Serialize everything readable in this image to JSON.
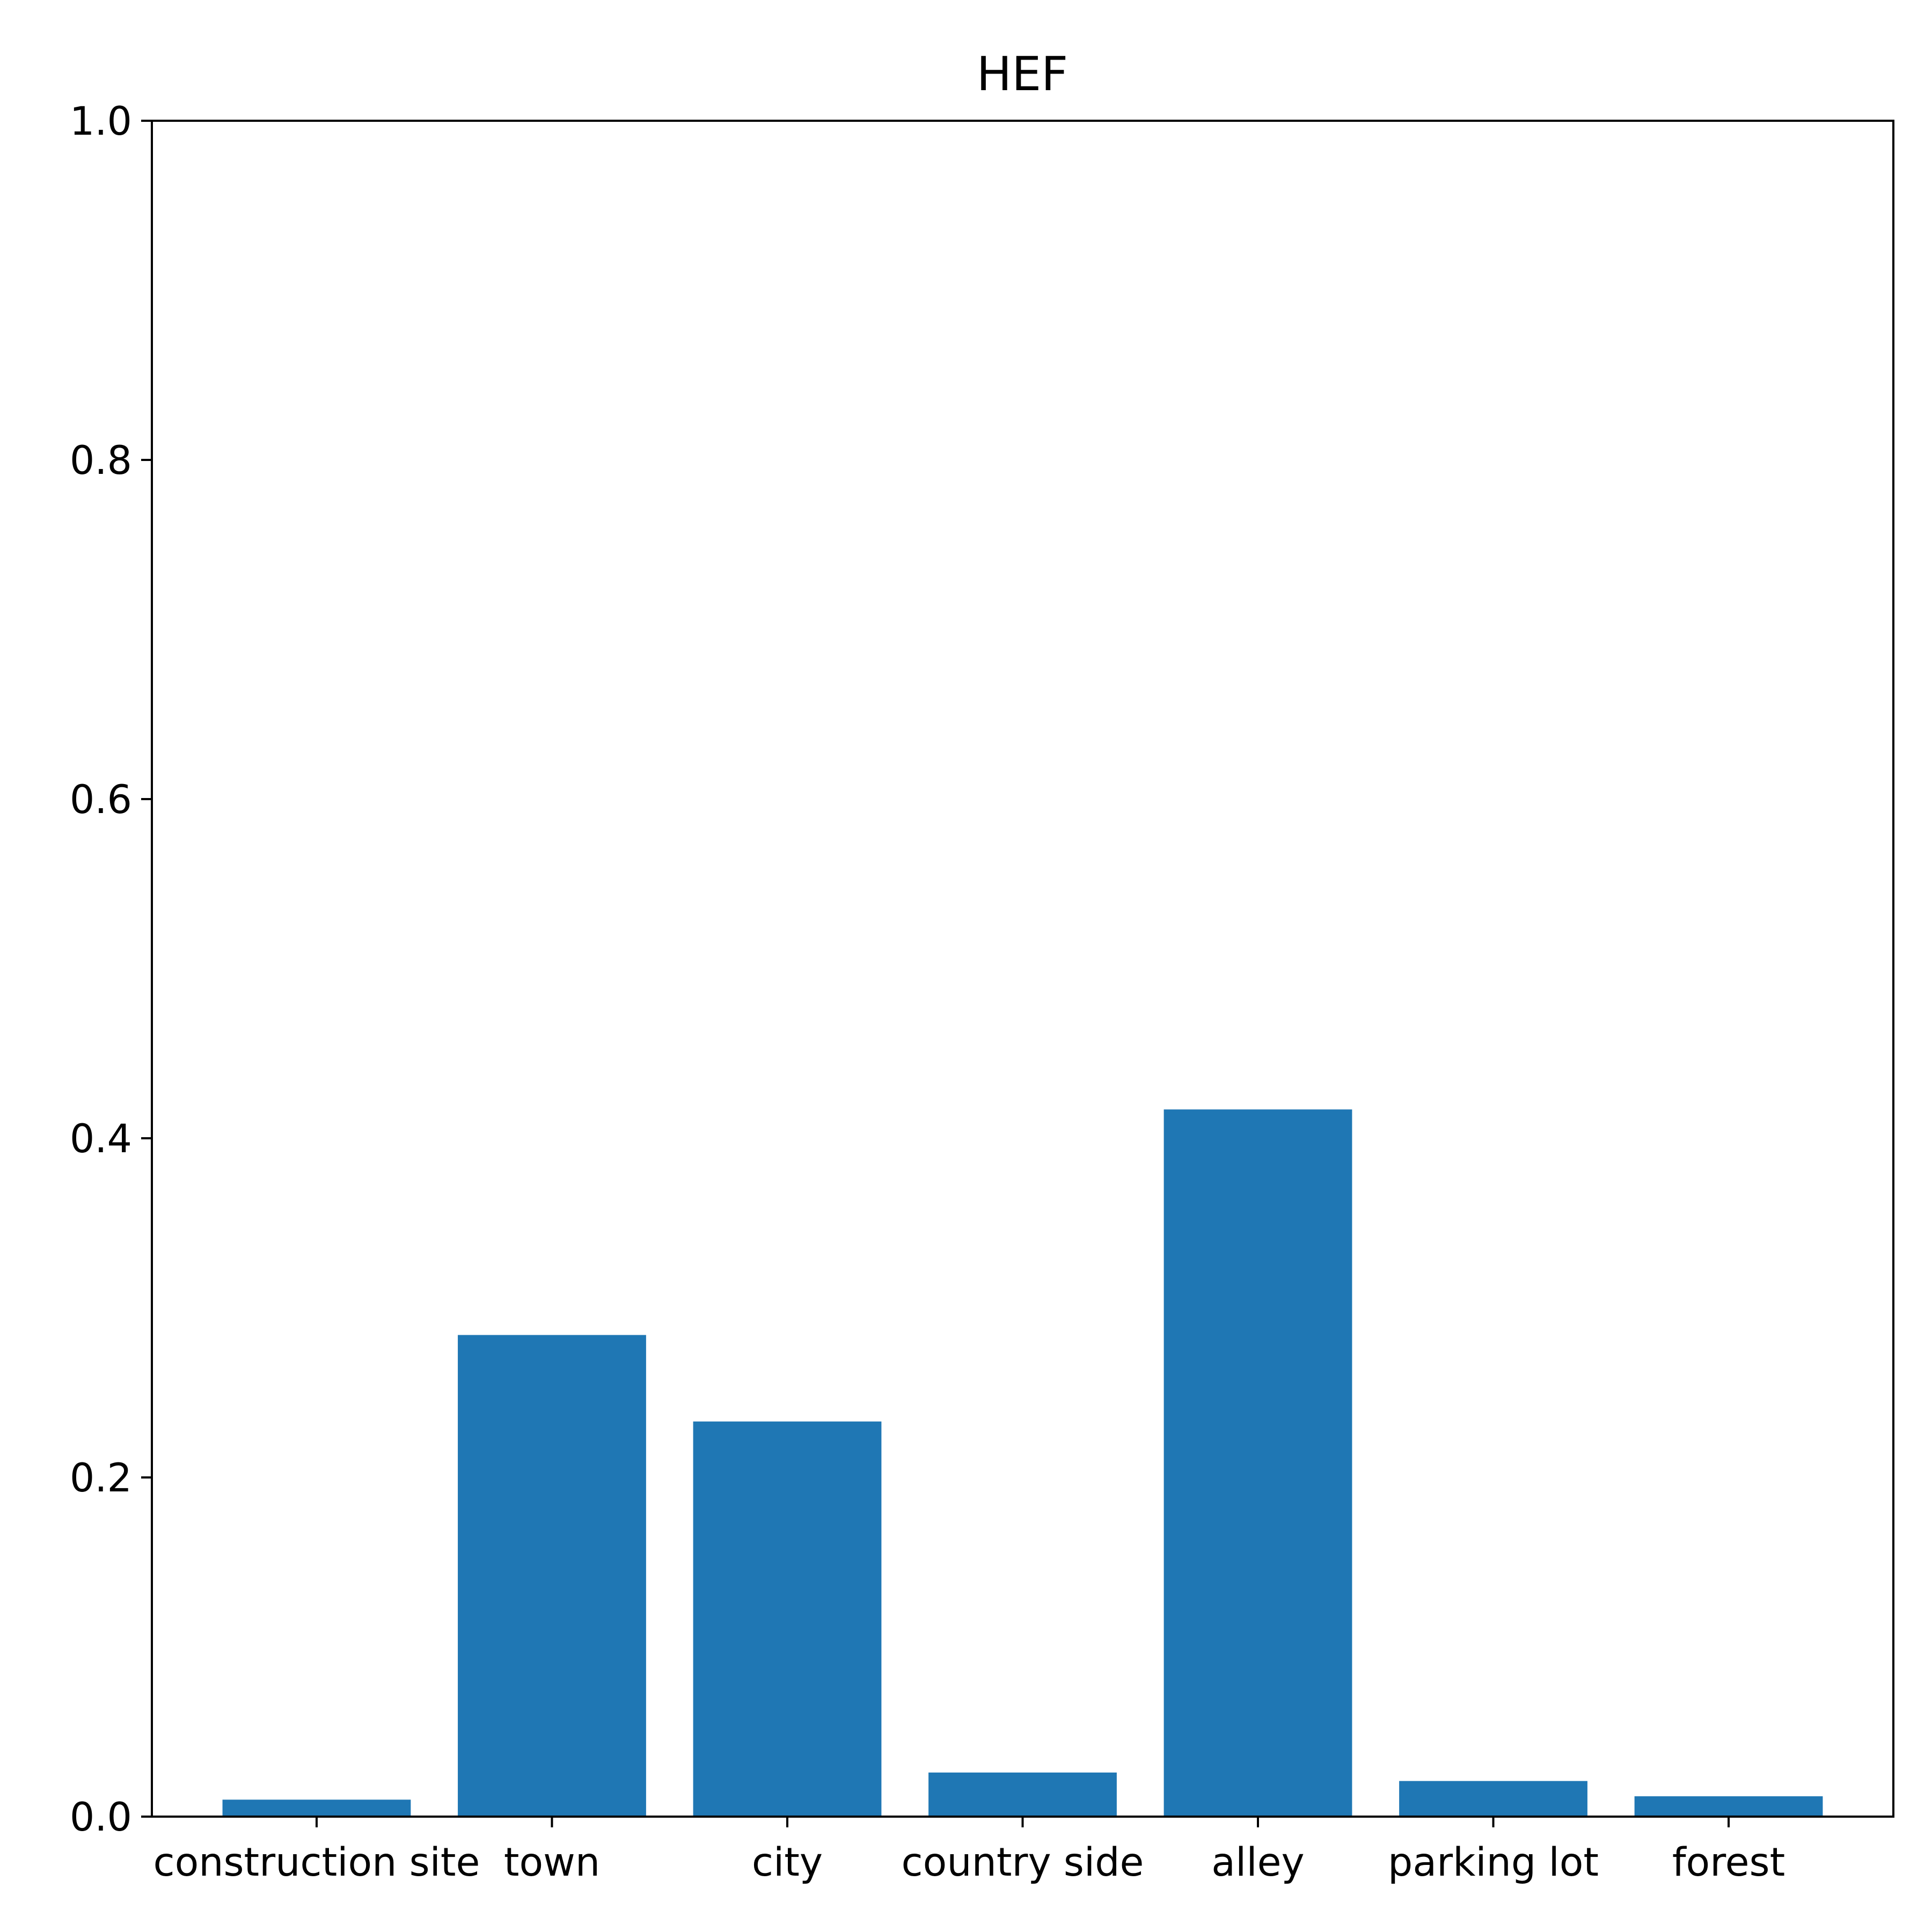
{
  "chart_data": {
    "type": "bar",
    "title": "HEF",
    "xlabel": "",
    "ylabel": "",
    "categories": [
      "construction site",
      "town",
      "city",
      "country side",
      "alley",
      "parking lot",
      "forest"
    ],
    "values": [
      0.01,
      0.284,
      0.233,
      0.026,
      0.417,
      0.021,
      0.012
    ],
    "ylim": [
      0.0,
      1.0
    ],
    "yticks": [
      "0.0",
      "0.2",
      "0.4",
      "0.6",
      "0.8",
      "1.0"
    ],
    "bar_color": "#1f77b4",
    "grid": false,
    "legend": "none"
  }
}
